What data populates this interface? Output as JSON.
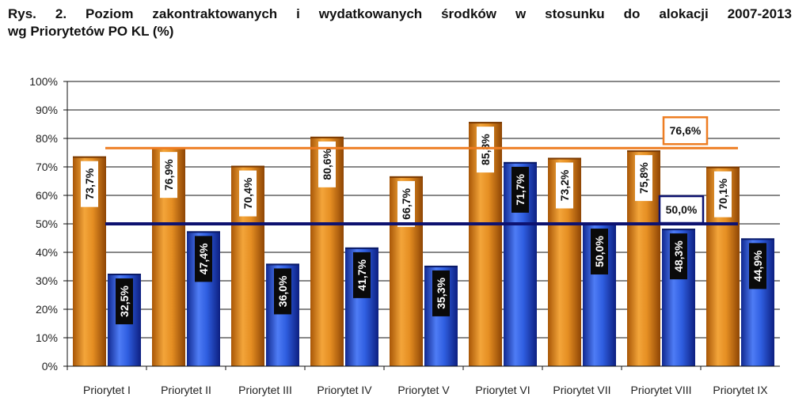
{
  "caption": {
    "line1": "Rys. 2. Poziom zakontraktowanych i wydatkowanych środków w stosunku do alokacji 2007-2013",
    "line2": "wg Priorytetów PO KL (%)"
  },
  "chart_data": {
    "type": "bar",
    "categories": [
      "Priorytet I",
      "Priorytet II",
      "Priorytet III",
      "Priorytet IV",
      "Priorytet V",
      "Priorytet VI",
      "Priorytet VII",
      "Priorytet VIII",
      "Priorytet IX"
    ],
    "series": [
      {
        "color": "#e08a1e",
        "values": [
          73.7,
          76.9,
          70.4,
          80.6,
          66.7,
          85.8,
          73.2,
          75.8,
          70.1
        ],
        "labels": [
          "73,7%",
          "76,9%",
          "70,4%",
          "80,6%",
          "66,7%",
          "85,8%",
          "73,2%",
          "75,8%",
          "70,1%"
        ]
      },
      {
        "color": "#2f5ee0",
        "values": [
          32.5,
          47.4,
          36.0,
          41.7,
          35.3,
          71.7,
          50.0,
          48.3,
          44.9
        ],
        "labels": [
          "32,5%",
          "47,4%",
          "36,0%",
          "41,7%",
          "35,3%",
          "71,7%",
          "50,0%",
          "48,3%",
          "44,9%"
        ]
      }
    ],
    "reference_lines": [
      {
        "value": 76.6,
        "label": "76,6%",
        "color": "#ee7d22"
      },
      {
        "value": 50.0,
        "label": "50,0%",
        "color": "#0d1270"
      }
    ],
    "yticks": [
      "0%",
      "10%",
      "20%",
      "30%",
      "40%",
      "50%",
      "60%",
      "70%",
      "80%",
      "90%",
      "100%"
    ],
    "ylim": [
      0,
      100
    ],
    "grid": true,
    "title": "",
    "xlabel": "",
    "ylabel": ""
  }
}
